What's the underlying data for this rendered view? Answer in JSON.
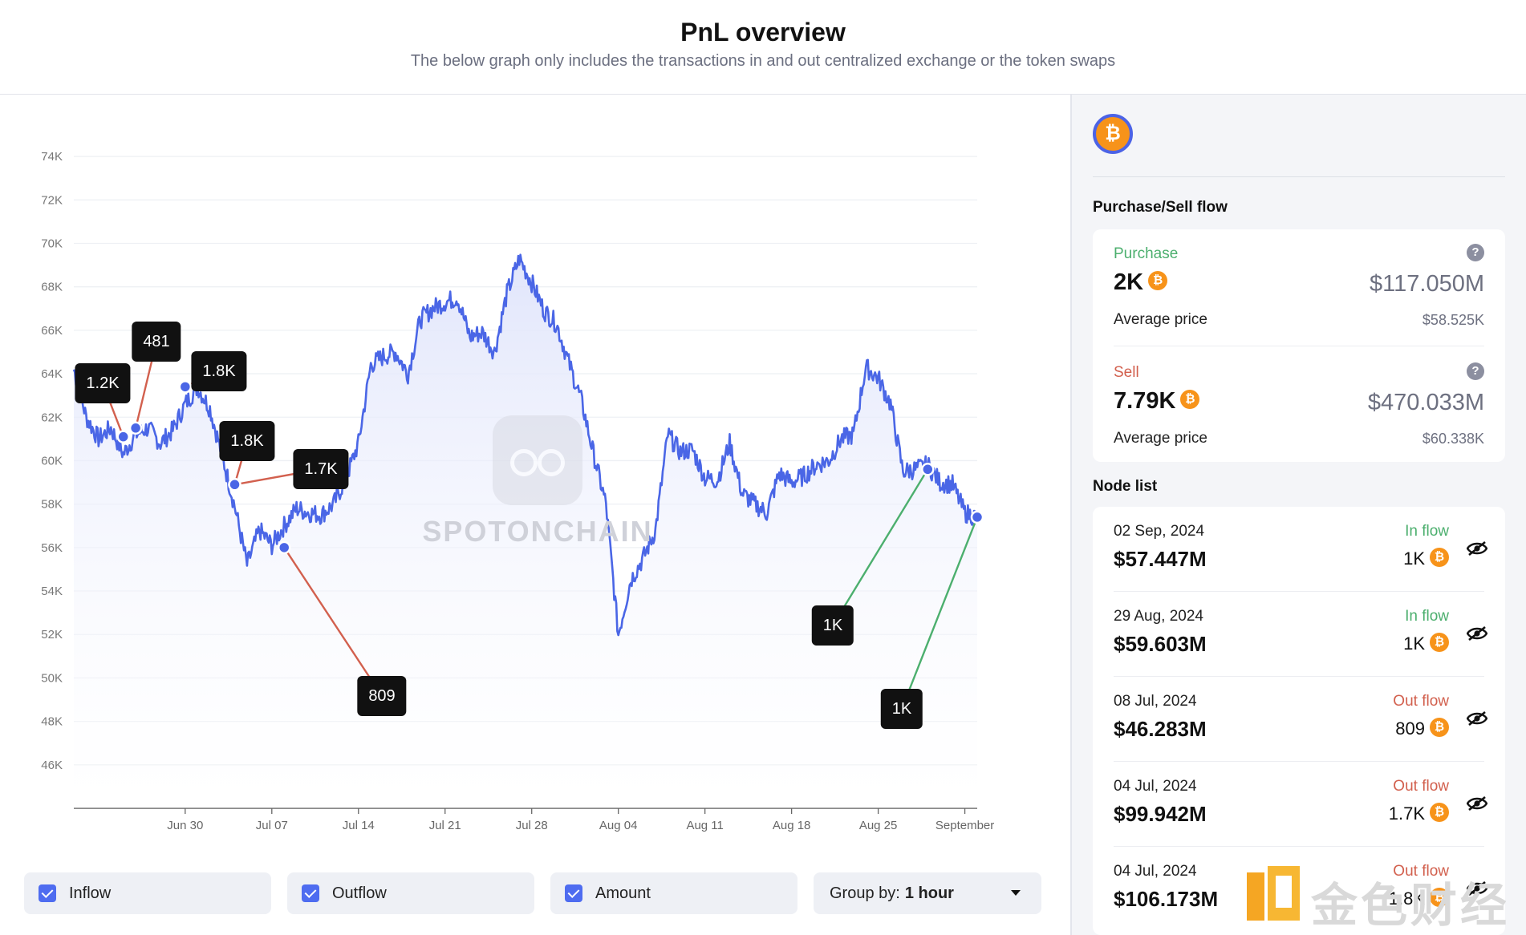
{
  "header": {
    "title": "PnL overview",
    "subtitle": "The below graph only includes the transactions in and out centralized exchange or the token swaps"
  },
  "watermark": {
    "text": "SPOTONCHAIN"
  },
  "chart_data": {
    "type": "line",
    "title": "",
    "xlabel": "",
    "ylabel": "",
    "y_ticks": [
      "74K",
      "72K",
      "70K",
      "68K",
      "66K",
      "64K",
      "62K",
      "60K",
      "58K",
      "56K",
      "54K",
      "52K",
      "50K",
      "48K",
      "46K"
    ],
    "ylim": [
      44000,
      75000
    ],
    "x_ticks": [
      "Jun 30",
      "Jul 07",
      "Jul 14",
      "Jul 21",
      "Jul 28",
      "Aug 04",
      "Aug 11",
      "Aug 18",
      "Aug 25",
      "September"
    ],
    "xlim": [
      "2024-06-21",
      "2024-09-02"
    ],
    "grid": true,
    "series": [
      {
        "name": "",
        "color": "#4a66e6",
        "x": [
          "2024-06-21",
          "2024-06-22",
          "2024-06-23",
          "2024-06-24",
          "2024-06-25",
          "2024-06-26",
          "2024-06-27",
          "2024-06-28",
          "2024-06-29",
          "2024-06-30",
          "2024-07-01",
          "2024-07-02",
          "2024-07-03",
          "2024-07-04",
          "2024-07-05",
          "2024-07-06",
          "2024-07-07",
          "2024-07-08",
          "2024-07-09",
          "2024-07-10",
          "2024-07-11",
          "2024-07-12",
          "2024-07-13",
          "2024-07-14",
          "2024-07-15",
          "2024-07-16",
          "2024-07-17",
          "2024-07-18",
          "2024-07-19",
          "2024-07-20",
          "2024-07-21",
          "2024-07-22",
          "2024-07-23",
          "2024-07-24",
          "2024-07-25",
          "2024-07-26",
          "2024-07-27",
          "2024-07-28",
          "2024-07-29",
          "2024-07-30",
          "2024-07-31",
          "2024-08-01",
          "2024-08-02",
          "2024-08-03",
          "2024-08-04",
          "2024-08-05",
          "2024-08-06",
          "2024-08-07",
          "2024-08-08",
          "2024-08-09",
          "2024-08-10",
          "2024-08-11",
          "2024-08-12",
          "2024-08-13",
          "2024-08-14",
          "2024-08-15",
          "2024-08-16",
          "2024-08-17",
          "2024-08-18",
          "2024-08-19",
          "2024-08-20",
          "2024-08-21",
          "2024-08-22",
          "2024-08-23",
          "2024-08-24",
          "2024-08-25",
          "2024-08-26",
          "2024-08-27",
          "2024-08-28",
          "2024-08-29",
          "2024-08-30",
          "2024-08-31",
          "2024-09-01",
          "2024-09-02"
        ],
        "y": [
          64200,
          62000,
          61000,
          61500,
          60300,
          61200,
          61500,
          60800,
          61400,
          62600,
          63400,
          62400,
          60200,
          57900,
          55200,
          56800,
          56100,
          57000,
          57800,
          57600,
          57500,
          58000,
          59200,
          60800,
          64400,
          64800,
          65000,
          64000,
          66500,
          67000,
          67300,
          67500,
          65700,
          65900,
          65000,
          67700,
          69300,
          68200,
          66900,
          66300,
          64500,
          62800,
          60300,
          58000,
          52000,
          54500,
          55500,
          56800,
          61200,
          60400,
          60500,
          59200,
          59100,
          60800,
          58500,
          58000,
          57600,
          59400,
          59000,
          59300,
          59800,
          60000,
          61000,
          61200,
          64300,
          63800,
          62600,
          59500,
          59600,
          59800,
          59000,
          58900,
          57600,
          57400
        ]
      }
    ],
    "markers": [
      {
        "date": "2024-06-25",
        "value": 61100,
        "label": "1.2K",
        "flow": "out"
      },
      {
        "date": "2024-06-26",
        "value": 61500,
        "label": "481",
        "flow": "out"
      },
      {
        "date": "2024-06-30",
        "value": 63400,
        "label": "1.8K",
        "flow": "out"
      },
      {
        "date": "2024-07-04",
        "value": 58900,
        "label": "1.8K",
        "flow": "out"
      },
      {
        "date": "2024-07-04",
        "value": 58900,
        "label": "1.7K",
        "flow": "out"
      },
      {
        "date": "2024-07-08",
        "value": 56000,
        "label": "809",
        "flow": "out"
      },
      {
        "date": "2024-08-29",
        "value": 59600,
        "label": "1K",
        "flow": "in"
      },
      {
        "date": "2024-09-02",
        "value": 57400,
        "label": "1K",
        "flow": "in"
      }
    ]
  },
  "controls": {
    "inflow": "Inflow",
    "outflow": "Outflow",
    "amount": "Amount",
    "group_by_label": "Group by:",
    "group_by_value": "1 hour"
  },
  "panel": {
    "coin_symbol": "₿",
    "flow_title": "Purchase/Sell flow",
    "purchase": {
      "label": "Purchase",
      "qty": "2K",
      "usd": "$117.050M",
      "avg_label": "Average price",
      "avg_value": "$58.525K"
    },
    "sell": {
      "label": "Sell",
      "qty": "7.79K",
      "usd": "$470.033M",
      "avg_label": "Average price",
      "avg_value": "$60.338K"
    },
    "help_glyph": "?",
    "node_title": "Node list",
    "nodes": [
      {
        "date": "02 Sep, 2024",
        "flow": "In flow",
        "amount": "$57.447M",
        "qty": "1K"
      },
      {
        "date": "29 Aug, 2024",
        "flow": "In flow",
        "amount": "$59.603M",
        "qty": "1K"
      },
      {
        "date": "08 Jul, 2024",
        "flow": "Out flow",
        "amount": "$46.283M",
        "qty": "809"
      },
      {
        "date": "04 Jul, 2024",
        "flow": "Out flow",
        "amount": "$99.942M",
        "qty": "1.7K"
      },
      {
        "date": "04 Jul, 2024",
        "flow": "Out flow",
        "amount": "$106.173M",
        "qty": "1.8K"
      }
    ]
  },
  "corner_brand": {
    "text": "金色财经"
  },
  "colors": {
    "accent": "#4a66e6",
    "inflow": "#4caf6e",
    "outflow": "#d2604e",
    "btc": "#f7931a"
  }
}
